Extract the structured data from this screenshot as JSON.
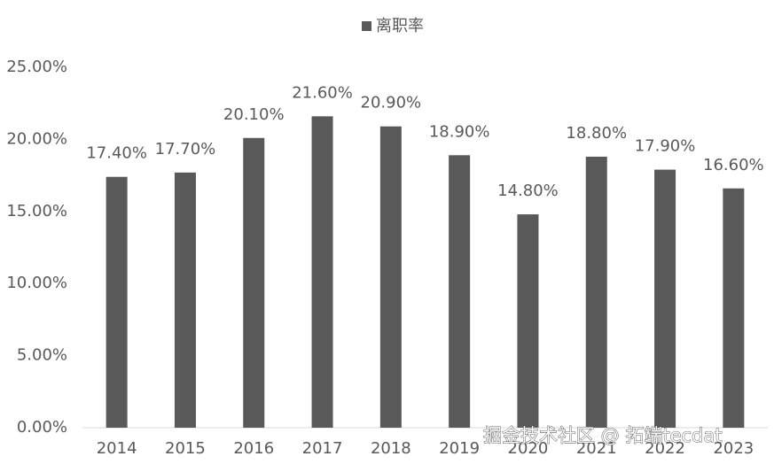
{
  "chart_data": {
    "type": "bar",
    "legend_label": "离职率",
    "categories": [
      "2014",
      "2015",
      "2016",
      "2017",
      "2018",
      "2019",
      "2020",
      "2021",
      "2022",
      "2023"
    ],
    "series": [
      {
        "name": "离职率",
        "color": "#595959",
        "values": [
          17.4,
          17.7,
          20.1,
          21.6,
          20.9,
          18.9,
          14.8,
          18.8,
          17.9,
          16.6
        ],
        "value_labels": [
          "17.40%",
          "17.70%",
          "20.10%",
          "21.60%",
          "20.90%",
          "18.90%",
          "14.80%",
          "18.80%",
          "17.90%",
          "16.60%"
        ]
      }
    ],
    "ylim": [
      0,
      25
    ],
    "yticks": [
      {
        "value": 0,
        "label": "0.00%"
      },
      {
        "value": 5,
        "label": "5.00%"
      },
      {
        "value": 10,
        "label": "10.00%"
      },
      {
        "value": 15,
        "label": "15.00%"
      },
      {
        "value": 20,
        "label": "20.00%"
      },
      {
        "value": 25,
        "label": "25.00%"
      }
    ],
    "grid": false,
    "legend": "top"
  },
  "watermark": "掘金技术社区 @ 拓端tecdat"
}
